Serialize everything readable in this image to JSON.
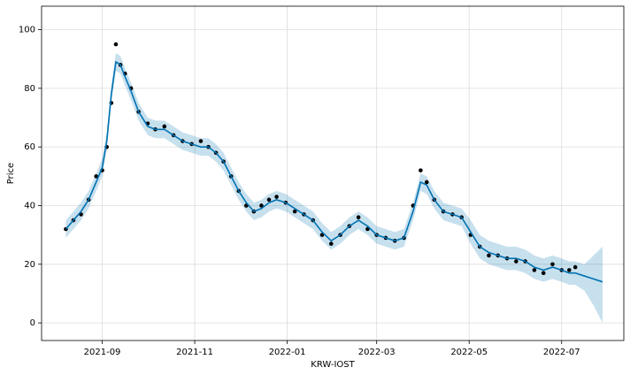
{
  "chart_data": {
    "type": "line",
    "xlabel": "KRW-IOST",
    "ylabel": "Price",
    "ylim": [
      -6,
      108
    ],
    "yticks": [
      0,
      20,
      40,
      60,
      80,
      100
    ],
    "xlim": [
      "2021-07-23",
      "2022-08-11"
    ],
    "xticks": [
      "2021-09",
      "2021-11",
      "2022-01",
      "2022-03",
      "2022-05",
      "2022-07"
    ],
    "grid": true,
    "observed": {
      "color": "#000000",
      "x": [
        "2021-08-08",
        "2021-08-13",
        "2021-08-18",
        "2021-08-23",
        "2021-08-28",
        "2021-09-01",
        "2021-09-04",
        "2021-09-07",
        "2021-09-10",
        "2021-09-13",
        "2021-09-16",
        "2021-09-20",
        "2021-09-25",
        "2021-10-01",
        "2021-10-06",
        "2021-10-12",
        "2021-10-18",
        "2021-10-24",
        "2021-10-30",
        "2021-11-05",
        "2021-11-10",
        "2021-11-15",
        "2021-11-20",
        "2021-11-25",
        "2021-11-30",
        "2021-12-05",
        "2021-12-10",
        "2021-12-15",
        "2021-12-20",
        "2021-12-25",
        "2021-12-31",
        "2022-01-06",
        "2022-01-12",
        "2022-01-18",
        "2022-01-24",
        "2022-01-30",
        "2022-02-05",
        "2022-02-11",
        "2022-02-17",
        "2022-02-23",
        "2022-03-01",
        "2022-03-07",
        "2022-03-13",
        "2022-03-19",
        "2022-03-25",
        "2022-03-30",
        "2022-04-03",
        "2022-04-08",
        "2022-04-14",
        "2022-04-20",
        "2022-04-26",
        "2022-05-02",
        "2022-05-08",
        "2022-05-14",
        "2022-05-20",
        "2022-05-26",
        "2022-06-01",
        "2022-06-07",
        "2022-06-13",
        "2022-06-19",
        "2022-06-25",
        "2022-07-01",
        "2022-07-06",
        "2022-07-10"
      ],
      "values": [
        32,
        35,
        37,
        42,
        50,
        52,
        60,
        75,
        95,
        88,
        85,
        80,
        72,
        68,
        66,
        67,
        64,
        62,
        61,
        62,
        60,
        58,
        55,
        50,
        45,
        40,
        38,
        40,
        42,
        43,
        41,
        38,
        37,
        35,
        30,
        27,
        30,
        33,
        36,
        32,
        30,
        29,
        28,
        29,
        40,
        52,
        48,
        42,
        38,
        37,
        36,
        30,
        26,
        23,
        23,
        22,
        21,
        21,
        18,
        17,
        20,
        18,
        18,
        19
      ]
    },
    "forecast": {
      "color": "#0072b2",
      "x": [
        "2021-08-08",
        "2021-08-13",
        "2021-08-18",
        "2021-08-23",
        "2021-08-28",
        "2021-09-01",
        "2021-09-04",
        "2021-09-07",
        "2021-09-10",
        "2021-09-13",
        "2021-09-16",
        "2021-09-20",
        "2021-09-25",
        "2021-10-01",
        "2021-10-06",
        "2021-10-12",
        "2021-10-18",
        "2021-10-24",
        "2021-10-30",
        "2021-11-05",
        "2021-11-10",
        "2021-11-15",
        "2021-11-20",
        "2021-11-25",
        "2021-11-30",
        "2021-12-05",
        "2021-12-10",
        "2021-12-15",
        "2021-12-20",
        "2021-12-25",
        "2021-12-31",
        "2022-01-06",
        "2022-01-12",
        "2022-01-18",
        "2022-01-24",
        "2022-01-30",
        "2022-02-05",
        "2022-02-11",
        "2022-02-17",
        "2022-02-23",
        "2022-03-01",
        "2022-03-07",
        "2022-03-13",
        "2022-03-19",
        "2022-03-25",
        "2022-03-30",
        "2022-04-03",
        "2022-04-08",
        "2022-04-14",
        "2022-04-20",
        "2022-04-26",
        "2022-05-02",
        "2022-05-08",
        "2022-05-14",
        "2022-05-20",
        "2022-05-26",
        "2022-06-01",
        "2022-06-07",
        "2022-06-13",
        "2022-06-19",
        "2022-06-25",
        "2022-07-01",
        "2022-07-06",
        "2022-07-10",
        "2022-07-16",
        "2022-07-22",
        "2022-07-28"
      ],
      "values": [
        32,
        35,
        38,
        42,
        48,
        53,
        62,
        78,
        89,
        88,
        84,
        79,
        72,
        67,
        66,
        66,
        64,
        62,
        61,
        60,
        60,
        58,
        55,
        50,
        45,
        41,
        38,
        39,
        41,
        42,
        41,
        39,
        37,
        35,
        31,
        28,
        30,
        33,
        35,
        33,
        30,
        29,
        28,
        29,
        38,
        48,
        47,
        42,
        38,
        37,
        36,
        31,
        26,
        24,
        23,
        22,
        22,
        21,
        19,
        18,
        19,
        18,
        17,
        17,
        16,
        15,
        14
      ],
      "lower": [
        29,
        32,
        35,
        39,
        45,
        50,
        59,
        75,
        86,
        85,
        81,
        76,
        69,
        64,
        63,
        63,
        61,
        59,
        58,
        57,
        57,
        55,
        52,
        47,
        42,
        38,
        35,
        36,
        38,
        39,
        38,
        36,
        34,
        32,
        28,
        25,
        27,
        30,
        32,
        30,
        27,
        26,
        25,
        26,
        35,
        45,
        44,
        39,
        35,
        34,
        33,
        27,
        22,
        20,
        19,
        18,
        18,
        17,
        15,
        14,
        15,
        14,
        13,
        13,
        11,
        6,
        0
      ],
      "upper": [
        35,
        38,
        41,
        45,
        51,
        56,
        65,
        81,
        92,
        91,
        87,
        82,
        75,
        70,
        69,
        69,
        67,
        65,
        64,
        63,
        63,
        61,
        58,
        53,
        48,
        44,
        41,
        42,
        44,
        45,
        44,
        42,
        40,
        38,
        34,
        31,
        33,
        36,
        38,
        36,
        33,
        32,
        31,
        32,
        41,
        51,
        50,
        45,
        41,
        40,
        39,
        35,
        30,
        28,
        27,
        26,
        26,
        25,
        23,
        22,
        23,
        22,
        21,
        21,
        20,
        23,
        26
      ]
    }
  }
}
